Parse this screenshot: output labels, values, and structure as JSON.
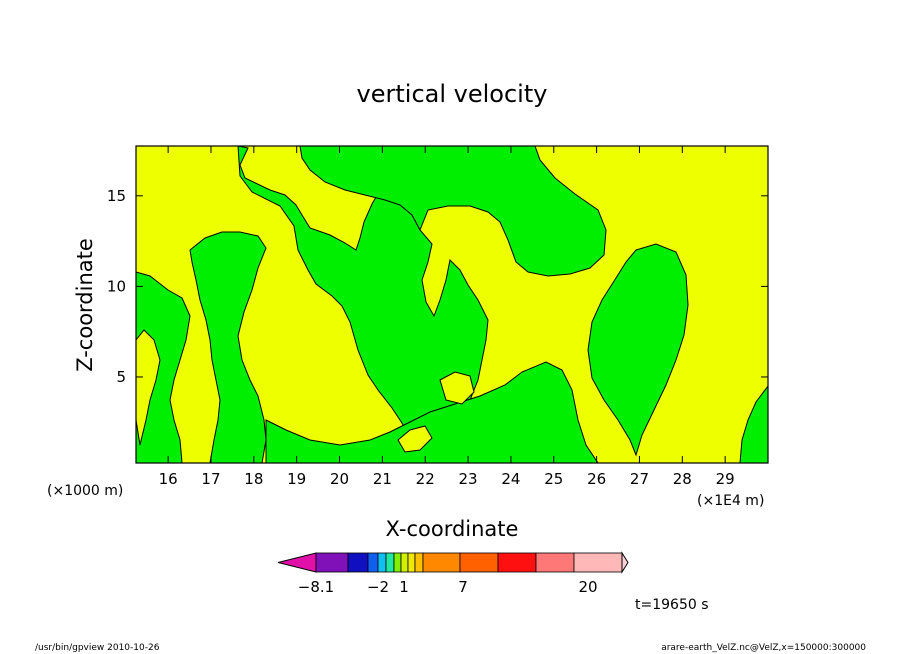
{
  "chart_data": {
    "type": "contour",
    "title": "vertical velocity",
    "xlabel": "X-coordinate",
    "ylabel": "Z-coordinate",
    "x_unit": "(×1E4 m)",
    "y_unit": "(×1000 m)",
    "xlim": [
      15.25,
      30.0
    ],
    "ylim": [
      0.25,
      17.75
    ],
    "x_ticks": [
      16,
      17,
      18,
      19,
      20,
      21,
      22,
      23,
      24,
      25,
      26,
      27,
      28,
      29
    ],
    "y_ticks": [
      5,
      10,
      15
    ],
    "time_label": "t=19650 s",
    "colorbar": {
      "tick_labels": [
        {
          "label": "-8.1",
          "value": -8.1
        },
        {
          "label": "-2",
          "value": -2
        },
        {
          "label": "1",
          "value": 1
        },
        {
          "label": "7",
          "value": 7
        },
        {
          "label": "20",
          "value": 20
        }
      ],
      "colors": [
        "#e010a8",
        "#8010b8",
        "#1010c0",
        "#1060f0",
        "#10c0f0",
        "#20e8a0",
        "#80f000",
        "#d0f000",
        "#f0e800",
        "#ffc000",
        "#ff8800",
        "#ff6000",
        "#ff1010",
        "#ff7878",
        "#ffb8b8",
        "#ffd0d8"
      ],
      "visible_fields": [
        "#00ee00",
        "#eeff00"
      ]
    }
  },
  "footer": {
    "left": "/usr/bin/gpview  2010-10-26",
    "right": "arare-earth_VelZ.nc@VelZ,x=150000:300000"
  }
}
